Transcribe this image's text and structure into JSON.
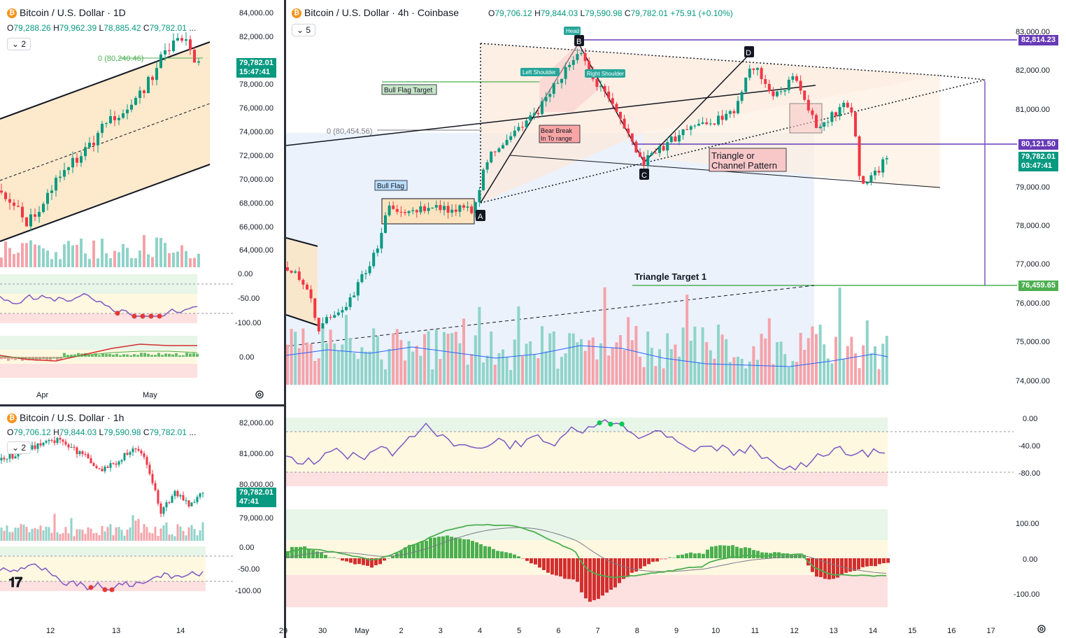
{
  "panels": {
    "daily": {
      "title": "Bitcoin / U.S. Dollar · 1D",
      "ohlc": {
        "o_label": "O",
        "o": "79,288.26",
        "h_label": "H",
        "h": "79,962.39",
        "l_label": "L",
        "l": "78,885.42",
        "c_label": "C",
        "c": "79,782.01",
        "more": "..."
      },
      "indicator_count": "2",
      "price_axis": [
        "84,000.00",
        "82,000.00",
        "78,000.00",
        "76,000.00",
        "74,000.00",
        "72,000.00",
        "70,000.00",
        "68,000.00",
        "66,000.00",
        "64,000.00"
      ],
      "price_tag": {
        "price": "79,782.01",
        "timer": "15:47:41"
      },
      "fib_label": "0 (80,240.46)",
      "rsi_axis": [
        "0.00",
        "-50.00",
        "-100.00"
      ],
      "macd_axis": [
        "0.00"
      ],
      "time_axis": [
        "Apr",
        "May"
      ]
    },
    "hourly": {
      "title": "Bitcoin / U.S. Dollar · 1h",
      "ohlc": {
        "o_label": "O",
        "o": "79,706.12",
        "h_label": "H",
        "h": "79,844.03",
        "l_label": "L",
        "l": "79,590.98",
        "c_label": "C",
        "c": "79,782.01",
        "more": "..."
      },
      "indicator_count": "2",
      "price_axis": [
        "82,000.00",
        "81,000.00",
        "80,000.00",
        "79,000.00"
      ],
      "price_tag": {
        "price": "79,782.01",
        "timer": "47:41"
      },
      "rsi_axis": [
        "0.00",
        "-50.00",
        "-100.00"
      ],
      "time_axis": [
        "12",
        "13",
        "14"
      ]
    },
    "fourhour": {
      "title": "Bitcoin / U.S. Dollar · 4h · Coinbase",
      "ohlc": {
        "o_label": "O",
        "o": "79,706.12",
        "h_label": "H",
        "h": "79,844.03",
        "l_label": "L",
        "l": "79,590.98",
        "c_label": "C",
        "c": "79,782.01",
        "change": "+75.91 (+0.10%)"
      },
      "indicator_count": "5",
      "price_axis": [
        "83,000.00",
        "82,000.00",
        "81,000.00",
        "79,000.00",
        "78,000.00",
        "77,000.00",
        "76,000.00",
        "75,000.00",
        "74,000.00"
      ],
      "tags": {
        "top": "82,814.23",
        "mid": "80,121.50",
        "current_price": "79,782.01",
        "current_timer": "03:47:41",
        "target": "76,459.65"
      },
      "rsi_axis": [
        "0.00",
        "-40.00",
        "-80.00"
      ],
      "macd_axis": [
        "100.00",
        "0.00",
        "-100.00"
      ],
      "time_axis": [
        "29",
        "30",
        "May",
        "2",
        "3",
        "4",
        "5",
        "6",
        "7",
        "8",
        "9",
        "10",
        "11",
        "12",
        "13",
        "14",
        "15",
        "16",
        "17"
      ],
      "annotations": {
        "bull_flag_target": "Bull Flag Target",
        "bull_flag": "Bull Flag",
        "fib": "0 (80,454.56)",
        "left_shoulder": "Left Shoulder",
        "head": "Head",
        "right_shoulder": "Right Shoulder",
        "bear_break_1": "Bear Break",
        "bear_break_2": "In To range",
        "triangle_1": "Triangle or",
        "triangle_2": "Channel Pattern",
        "triangle_target": "Triangle Target 1",
        "pt_a": "A",
        "pt_b": "B",
        "pt_c": "C",
        "pt_d": "D"
      }
    }
  },
  "icons": {
    "symbol": "bitcoin-icon",
    "settings": "gear-icon",
    "brand": "tradingview-logo"
  },
  "colors": {
    "up": "#089981",
    "down": "#f23645",
    "purple": "#7e57c2",
    "green_line": "#4caf50",
    "tag_purple": "#673ab7"
  }
}
